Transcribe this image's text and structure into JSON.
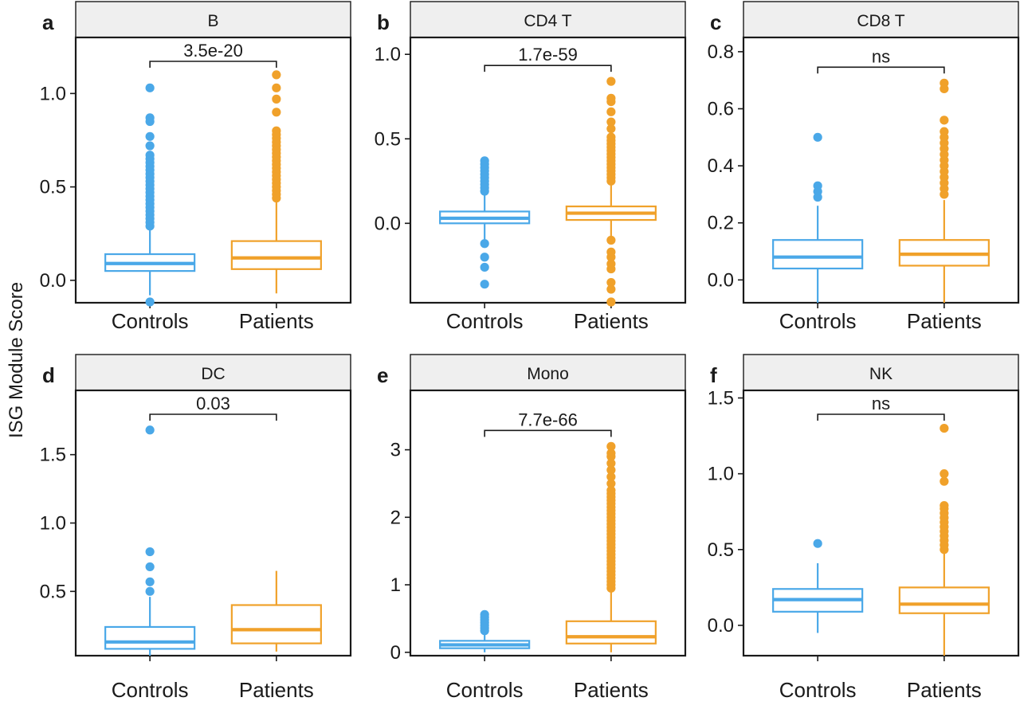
{
  "figure": {
    "y_axis_label": "ISG Module Score",
    "colors": {
      "Controls": "#4aa8e8",
      "Patients": "#f0a12a",
      "strip_fill": "#efefef",
      "frame": "#1a1a1a"
    }
  },
  "chart_data": [
    {
      "type": "box",
      "panel_letter": "a",
      "title": "B",
      "categories": [
        "Controls",
        "Patients"
      ],
      "ylim": [
        -0.12,
        1.3
      ],
      "yticks": [
        0.0,
        0.5,
        1.0
      ],
      "ytick_labels": [
        "0.0",
        "0.5",
        "1.0"
      ],
      "significance": "3.5e-20",
      "boxes": [
        {
          "group": "Controls",
          "q1": 0.05,
          "median": 0.09,
          "q3": 0.14,
          "whisker_low": -0.08,
          "whisker_high": 0.27,
          "outliers": [
            -0.12,
            0.29,
            0.31,
            0.33,
            0.35,
            0.37,
            0.39,
            0.41,
            0.43,
            0.45,
            0.47,
            0.49,
            0.51,
            0.53,
            0.55,
            0.57,
            0.59,
            0.61,
            0.63,
            0.65,
            0.67,
            0.72,
            0.77,
            0.85,
            0.87,
            1.03
          ]
        },
        {
          "group": "Patients",
          "q1": 0.06,
          "median": 0.12,
          "q3": 0.21,
          "whisker_low": -0.07,
          "whisker_high": 0.42,
          "outliers": [
            0.44,
            0.46,
            0.48,
            0.5,
            0.52,
            0.54,
            0.56,
            0.58,
            0.6,
            0.62,
            0.64,
            0.66,
            0.68,
            0.7,
            0.72,
            0.74,
            0.76,
            0.78,
            0.8,
            0.9,
            0.97,
            1.03,
            1.1
          ]
        }
      ]
    },
    {
      "type": "box",
      "panel_letter": "b",
      "title": "CD4 T",
      "categories": [
        "Controls",
        "Patients"
      ],
      "ylim": [
        -0.47,
        1.1
      ],
      "yticks": [
        0.0,
        0.5,
        1.0
      ],
      "ytick_labels": [
        "0.0",
        "0.5",
        "1.0"
      ],
      "significance": "1.7e-59",
      "boxes": [
        {
          "group": "Controls",
          "q1": 0.0,
          "median": 0.03,
          "q3": 0.07,
          "whisker_low": -0.1,
          "whisker_high": 0.17,
          "outliers": [
            -0.36,
            -0.26,
            -0.2,
            -0.12,
            0.19,
            0.21,
            0.23,
            0.25,
            0.27,
            0.29,
            0.31,
            0.33,
            0.35,
            0.37
          ]
        },
        {
          "group": "Patients",
          "q1": 0.02,
          "median": 0.06,
          "q3": 0.1,
          "whisker_low": -0.09,
          "whisker_high": 0.23,
          "outliers": [
            -0.47,
            -0.39,
            -0.35,
            -0.27,
            -0.24,
            -0.2,
            -0.17,
            -0.1,
            0.25,
            0.27,
            0.29,
            0.31,
            0.33,
            0.35,
            0.37,
            0.39,
            0.41,
            0.43,
            0.45,
            0.47,
            0.49,
            0.51,
            0.56,
            0.6,
            0.66,
            0.72,
            0.74,
            0.84
          ]
        }
      ]
    },
    {
      "type": "box",
      "panel_letter": "c",
      "title": "CD8 T",
      "categories": [
        "Controls",
        "Patients"
      ],
      "ylim": [
        -0.08,
        0.85
      ],
      "yticks": [
        0.0,
        0.2,
        0.4,
        0.6,
        0.8
      ],
      "ytick_labels": [
        "0.0",
        "0.2",
        "0.4",
        "0.6",
        "0.8"
      ],
      "significance": "ns",
      "boxes": [
        {
          "group": "Controls",
          "q1": 0.04,
          "median": 0.08,
          "q3": 0.14,
          "whisker_low": -0.08,
          "whisker_high": 0.26,
          "outliers": [
            0.29,
            0.31,
            0.33,
            0.5
          ]
        },
        {
          "group": "Patients",
          "q1": 0.05,
          "median": 0.09,
          "q3": 0.14,
          "whisker_low": -0.08,
          "whisker_high": 0.28,
          "outliers": [
            0.3,
            0.32,
            0.34,
            0.36,
            0.38,
            0.4,
            0.42,
            0.44,
            0.46,
            0.48,
            0.5,
            0.52,
            0.56,
            0.67,
            0.69
          ]
        }
      ]
    },
    {
      "type": "box",
      "panel_letter": "d",
      "title": "DC",
      "categories": [
        "Controls",
        "Patients"
      ],
      "ylim": [
        0.03,
        1.97
      ],
      "yticks": [
        0.5,
        1.0,
        1.5
      ],
      "ytick_labels": [
        "0.5",
        "1.0",
        "1.5"
      ],
      "significance": "0.03",
      "boxes": [
        {
          "group": "Controls",
          "q1": 0.08,
          "median": 0.13,
          "q3": 0.24,
          "whisker_low": 0.03,
          "whisker_high": 0.46,
          "outliers": [
            0.5,
            0.57,
            0.68,
            0.79,
            1.68
          ]
        },
        {
          "group": "Patients",
          "q1": 0.12,
          "median": 0.22,
          "q3": 0.4,
          "whisker_low": 0.06,
          "whisker_high": 0.65,
          "outliers": []
        }
      ]
    },
    {
      "type": "box",
      "panel_letter": "e",
      "title": "Mono",
      "categories": [
        "Controls",
        "Patients"
      ],
      "ylim": [
        -0.05,
        3.88
      ],
      "yticks": [
        0,
        1,
        2,
        3
      ],
      "ytick_labels": [
        "0",
        "1",
        "2",
        "3"
      ],
      "significance": "7.7e-66",
      "boxes": [
        {
          "group": "Controls",
          "q1": 0.06,
          "median": 0.11,
          "q3": 0.17,
          "whisker_low": 0.0,
          "whisker_high": 0.3,
          "outliers": [
            0.32,
            0.36,
            0.4,
            0.44,
            0.48,
            0.52,
            0.56
          ]
        },
        {
          "group": "Patients",
          "q1": 0.13,
          "median": 0.23,
          "q3": 0.46,
          "whisker_low": 0.0,
          "whisker_high": 0.92,
          "outliers": [
            0.95,
            1.0,
            1.05,
            1.1,
            1.15,
            1.2,
            1.25,
            1.3,
            1.35,
            1.4,
            1.45,
            1.5,
            1.55,
            1.6,
            1.65,
            1.7,
            1.75,
            1.8,
            1.85,
            1.9,
            1.95,
            2.0,
            2.05,
            2.1,
            2.15,
            2.2,
            2.25,
            2.3,
            2.35,
            2.4,
            2.5,
            2.6,
            2.7,
            2.8,
            2.9,
            2.95,
            3.05
          ]
        }
      ]
    },
    {
      "type": "box",
      "panel_letter": "f",
      "title": "NK",
      "categories": [
        "Controls",
        "Patients"
      ],
      "ylim": [
        -0.2,
        1.55
      ],
      "yticks": [
        0.0,
        0.5,
        1.0,
        1.5
      ],
      "ytick_labels": [
        "0.0",
        "0.5",
        "1.0",
        "1.5"
      ],
      "significance": "ns",
      "boxes": [
        {
          "group": "Controls",
          "q1": 0.09,
          "median": 0.17,
          "q3": 0.24,
          "whisker_low": -0.05,
          "whisker_high": 0.41,
          "outliers": [
            0.54
          ]
        },
        {
          "group": "Patients",
          "q1": 0.08,
          "median": 0.14,
          "q3": 0.25,
          "whisker_low": -0.2,
          "whisker_high": 0.48,
          "outliers": [
            0.5,
            0.53,
            0.56,
            0.59,
            0.62,
            0.65,
            0.68,
            0.71,
            0.74,
            0.77,
            0.79,
            0.95,
            1.0,
            1.3
          ]
        }
      ]
    }
  ]
}
